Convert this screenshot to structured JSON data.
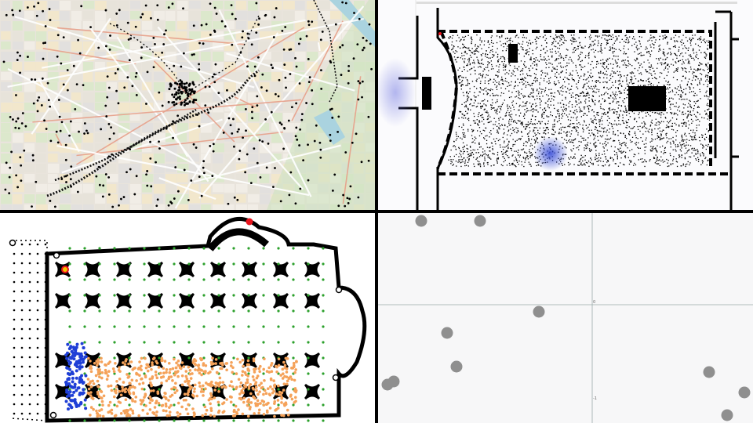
{
  "panels": {
    "corridor": {
      "header_text": "· · ·"
    },
    "scatter": {
      "y_tick_top": "0",
      "y_tick_bottom": "-1"
    }
  },
  "colors": {
    "map_background": "#e9e4dc",
    "agent": "#000000",
    "walkable_marker": "#2ca02c",
    "group_orange": "#f5a25a",
    "group_blue": "#1f3fd6",
    "highlight_red": "#e8141c",
    "density_glow": "#3a4fd8",
    "scatter_point": "#8f8f8f"
  }
}
